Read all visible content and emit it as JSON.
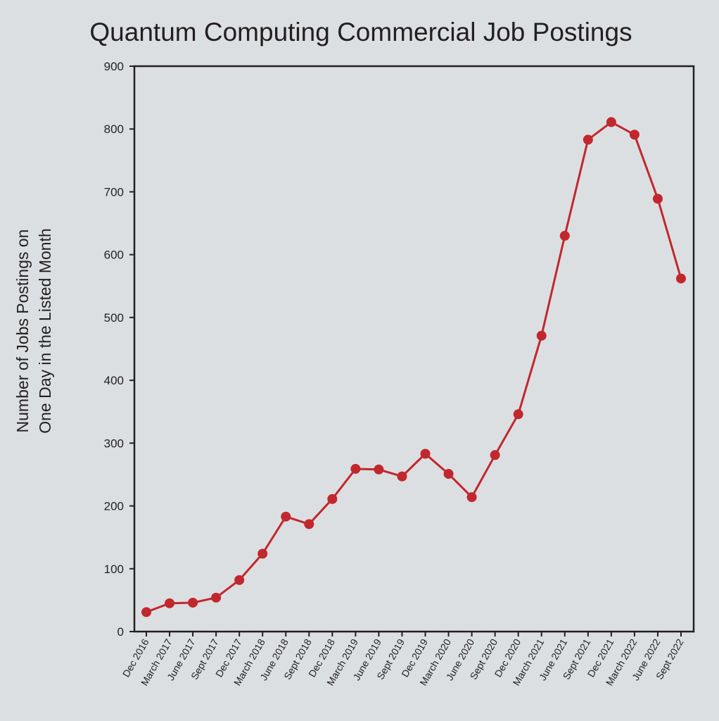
{
  "chart_data": {
    "type": "line",
    "title": "Quantum Computing Commercial Job Postings",
    "xlabel": "",
    "ylabel_lines": [
      "Number of Jobs Postings on",
      "One Day in the Listed Month"
    ],
    "ylim": [
      0,
      900
    ],
    "yticks": [
      0,
      100,
      200,
      300,
      400,
      500,
      600,
      700,
      800,
      900
    ],
    "grid": false,
    "legend": "none",
    "series_color": "#c1272d",
    "x": [
      "Dec 2016",
      "March 2017",
      "June 2017",
      "Sept 2017",
      "Dec 2017",
      "March 2018",
      "June 2018",
      "Sept 2018",
      "Dec 2018",
      "March 2019",
      "June 2019",
      "Sept 2019",
      "Dec 2019",
      "March 2020",
      "June 2020",
      "Sept 2020",
      "Dec 2020",
      "March 2021",
      "June 2021",
      "Sept 2021",
      "Dec 2021",
      "March 2022",
      "June 2022",
      "Sept 2022"
    ],
    "series": [
      {
        "values": [
          31,
          45,
          46,
          54,
          82,
          124,
          183,
          171,
          211,
          259,
          258,
          247,
          283,
          251,
          214,
          281,
          346,
          471,
          630,
          783,
          811,
          791,
          689,
          562
        ]
      }
    ]
  }
}
